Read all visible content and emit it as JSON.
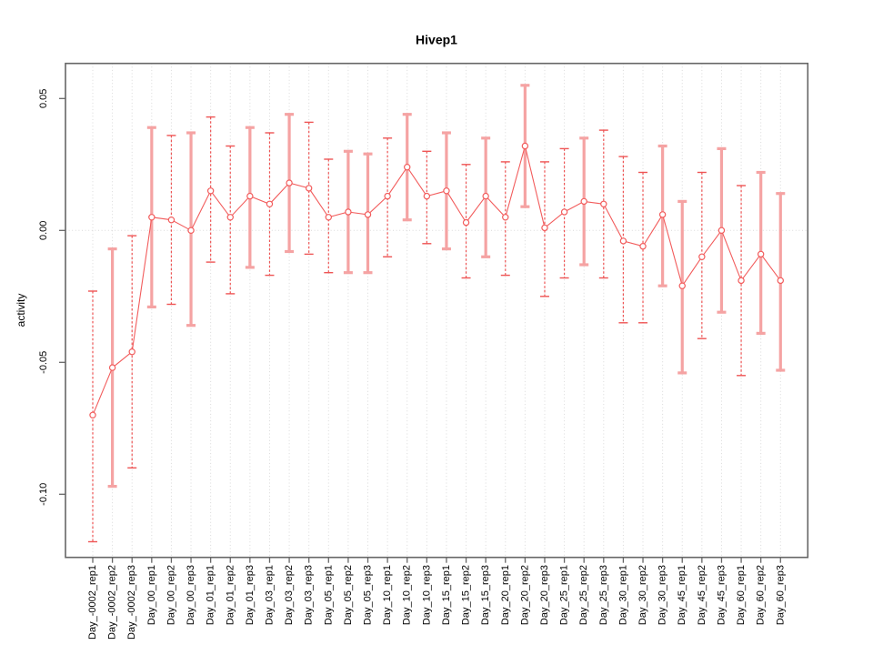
{
  "window": {
    "background": "#ffffff"
  },
  "chart_data": {
    "type": "line",
    "title": "Hivep1",
    "xlabel": "",
    "ylabel": "activity",
    "ylim": [
      -0.124,
      0.063
    ],
    "legend": "none",
    "grid": {
      "vertical_per_category": true,
      "zero_line": true,
      "style": "dotted"
    },
    "marker": "open-circle",
    "error_bars": true,
    "yticks": [
      {
        "value": 0.05,
        "label": "0.05"
      },
      {
        "value": 0.0,
        "label": "0.00"
      },
      {
        "value": -0.05,
        "label": "-0.05"
      },
      {
        "value": -0.1,
        "label": "-0.10"
      }
    ],
    "categories": [
      "Day_-0002_rep1",
      "Day_-0002_rep2",
      "Day_-0002_rep3",
      "Day_00_rep1",
      "Day_00_rep2",
      "Day_00_rep3",
      "Day_01_rep1",
      "Day_01_rep2",
      "Day_01_rep3",
      "Day_03_rep1",
      "Day_03_rep2",
      "Day_03_rep3",
      "Day_05_rep1",
      "Day_05_rep2",
      "Day_05_rep3",
      "Day_10_rep1",
      "Day_10_rep2",
      "Day_10_rep3",
      "Day_15_rep1",
      "Day_15_rep2",
      "Day_15_rep3",
      "Day_20_rep1",
      "Day_20_rep2",
      "Day_20_rep3",
      "Day_25_rep1",
      "Day_25_rep2",
      "Day_25_rep3",
      "Day_30_rep1",
      "Day_30_rep2",
      "Day_30_rep3",
      "Day_45_rep1",
      "Day_45_rep2",
      "Day_45_rep3",
      "Day_60_rep1",
      "Day_60_rep2",
      "Day_60_rep3"
    ],
    "series": [
      {
        "name": "activity",
        "values": [
          -0.07,
          -0.052,
          -0.046,
          0.005,
          0.004,
          0.0,
          0.015,
          0.005,
          0.013,
          0.01,
          0.018,
          0.016,
          0.005,
          0.007,
          0.006,
          0.013,
          0.024,
          0.013,
          0.015,
          0.003,
          0.013,
          0.005,
          0.032,
          0.001,
          0.007,
          0.011,
          0.01,
          -0.004,
          -0.006,
          0.006,
          -0.021,
          -0.01,
          0.0,
          -0.019,
          -0.009,
          -0.019
        ],
        "error_high": [
          -0.023,
          -0.007,
          -0.002,
          0.039,
          0.036,
          0.037,
          0.043,
          0.032,
          0.039,
          0.037,
          0.044,
          0.041,
          0.027,
          0.03,
          0.029,
          0.035,
          0.044,
          0.03,
          0.037,
          0.025,
          0.035,
          0.026,
          0.055,
          0.026,
          0.031,
          0.035,
          0.038,
          0.028,
          0.022,
          0.032,
          0.011,
          0.022,
          0.031,
          0.017,
          0.022,
          0.014
        ],
        "error_low": [
          -0.118,
          -0.097,
          -0.09,
          -0.029,
          -0.028,
          -0.036,
          -0.012,
          -0.024,
          -0.014,
          -0.017,
          -0.008,
          -0.009,
          -0.016,
          -0.016,
          -0.016,
          -0.01,
          0.004,
          -0.005,
          -0.007,
          -0.018,
          -0.01,
          -0.017,
          0.009,
          -0.025,
          -0.018,
          -0.013,
          -0.018,
          -0.035,
          -0.035,
          -0.021,
          -0.054,
          -0.041,
          -0.031,
          -0.055,
          -0.039,
          -0.053
        ],
        "bar_styles": [
          "dashed",
          "solid",
          "dashed",
          "solid",
          "dashed",
          "solid",
          "dashed",
          "dashed",
          "solid",
          "dashed",
          "solid",
          "dashed",
          "dashed",
          "solid",
          "solid",
          "dashed",
          "solid",
          "dashed",
          "solid",
          "dashed",
          "solid",
          "dashed",
          "solid",
          "dashed",
          "dashed",
          "solid",
          "dashed",
          "dashed",
          "dashed",
          "solid",
          "solid",
          "dashed",
          "solid",
          "dashed",
          "solid",
          "solid"
        ]
      }
    ],
    "colors": {
      "line": "#f25c5c",
      "marker_fill": "#ffffff",
      "bar_dashed": "#ee5555",
      "bar_solid": "#f5a3a3",
      "grid": "#d9d9d9",
      "frame": "#666666",
      "text": "#000000"
    }
  }
}
